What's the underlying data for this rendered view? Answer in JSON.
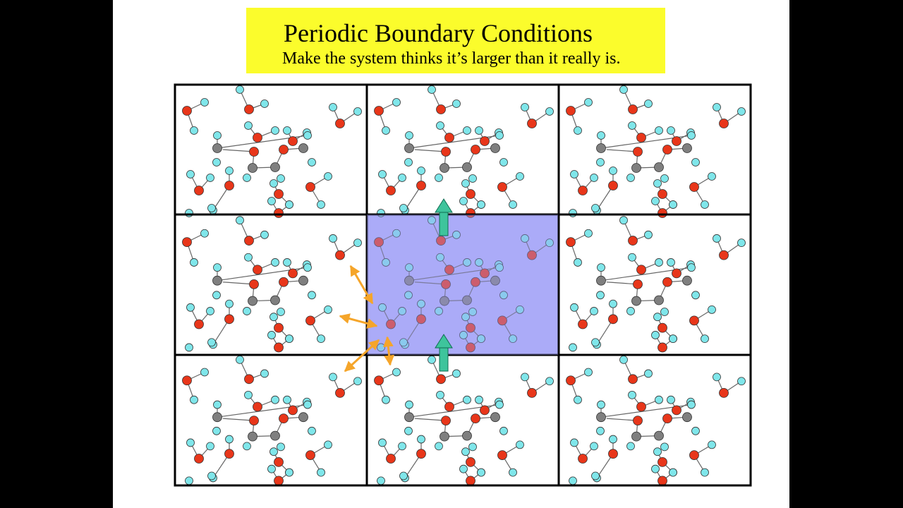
{
  "slide": {
    "title": "Periodic Boundary Conditions",
    "subtitle": "Make the system thinks it’s larger than it really is."
  },
  "colors": {
    "background": "#000000",
    "slide": "#ffffff",
    "title_box": "#fbfc2c",
    "oxygen": "#e8361a",
    "hydrogen": "#7fe6ea",
    "carbon": "#7f7f7f",
    "central_cell": "#b4b4fb",
    "arrow_teal": "#3ec49c",
    "arrow_orange": "#f5a52a",
    "grid_line": "#000000"
  },
  "icons": {
    "up_arrow": "up-arrow-icon",
    "neighbor_arrow": "double-headed-arrow-icon"
  }
}
